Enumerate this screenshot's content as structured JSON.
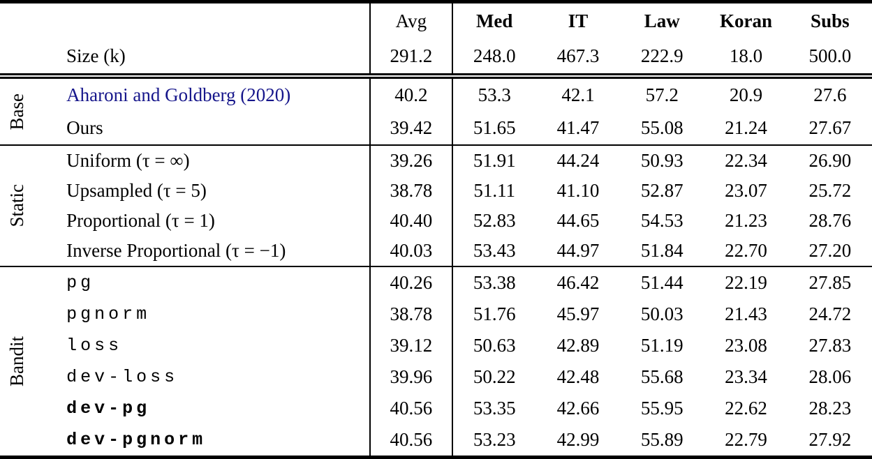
{
  "table": {
    "size_row_label": "Size (k)",
    "link_color": "#16168b",
    "columns": [
      {
        "label": "Avg",
        "size": "291.2",
        "emphasis": "normal"
      },
      {
        "label": "Med",
        "size": "248.0",
        "emphasis": "bold"
      },
      {
        "label": "IT",
        "size": "467.3",
        "emphasis": "bold"
      },
      {
        "label": "Law",
        "size": "222.9",
        "emphasis": "bold"
      },
      {
        "label": "Koran",
        "size": "18.0",
        "emphasis": "bold"
      },
      {
        "label": "Subs",
        "size": "500.0",
        "emphasis": "bold"
      }
    ],
    "groups": [
      {
        "name": "Base",
        "rows": [
          {
            "label": "Aharoni and Goldberg (2020)",
            "values": [
              "40.2",
              "53.3",
              "42.1",
              "57.2",
              "20.9",
              "27.6"
            ]
          },
          {
            "label": "Ours",
            "values": [
              "39.42",
              "51.65",
              "41.47",
              "55.08",
              "21.24",
              "27.67"
            ]
          }
        ]
      },
      {
        "name": "Static",
        "rows": [
          {
            "label": "Uniform (τ = ∞)",
            "values": [
              "39.26",
              "51.91",
              "44.24",
              "50.93",
              "22.34",
              "26.90"
            ]
          },
          {
            "label": "Upsampled (τ = 5)",
            "values": [
              "38.78",
              "51.11",
              "41.10",
              "52.87",
              "23.07",
              "25.72"
            ]
          },
          {
            "label": "Proportional (τ = 1)",
            "values": [
              "40.40",
              "52.83",
              "44.65",
              "54.53",
              "21.23",
              "28.76"
            ]
          },
          {
            "label": "Inverse Proportional (τ = −1)",
            "values": [
              "40.03",
              "53.43",
              "44.97",
              "51.84",
              "22.70",
              "27.20"
            ]
          }
        ]
      },
      {
        "name": "Bandit",
        "rows": [
          {
            "label": "pg",
            "values": [
              "40.26",
              "53.38",
              "46.42",
              "51.44",
              "22.19",
              "27.85"
            ]
          },
          {
            "label": "pgnorm",
            "values": [
              "38.78",
              "51.76",
              "45.97",
              "50.03",
              "21.43",
              "24.72"
            ]
          },
          {
            "label": "loss",
            "values": [
              "39.12",
              "50.63",
              "42.89",
              "51.19",
              "23.08",
              "27.83"
            ]
          },
          {
            "label": "dev-loss",
            "values": [
              "39.96",
              "50.22",
              "42.48",
              "55.68",
              "23.34",
              "28.06"
            ]
          },
          {
            "label": "dev-pg",
            "values": [
              "40.56",
              "53.35",
              "42.66",
              "55.95",
              "22.62",
              "28.23"
            ]
          },
          {
            "label": "dev-pgnorm",
            "values": [
              "40.56",
              "53.23",
              "42.99",
              "55.89",
              "22.79",
              "27.92"
            ]
          }
        ]
      }
    ]
  }
}
